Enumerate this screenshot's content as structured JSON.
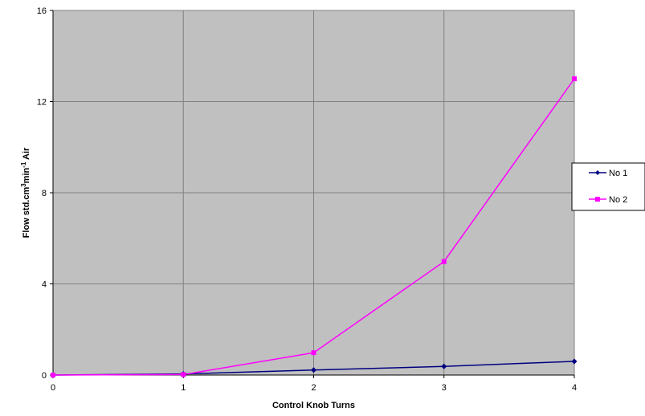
{
  "chart_data": {
    "type": "line",
    "xlabel": "Control Knob Turns",
    "ylabel": {
      "main": "Flow  std.cm",
      "sup1": "3",
      "mid": "min",
      "sup2": "-1",
      "end": "  Air"
    },
    "xlim": [
      0,
      4
    ],
    "ylim": [
      0,
      16
    ],
    "x_ticks": [
      "0",
      "1",
      "2",
      "3",
      "4"
    ],
    "y_ticks": [
      "0",
      "4",
      "8",
      "12",
      "16"
    ],
    "grid": true,
    "plot_background": "#C0C0C0",
    "legend_position": "right",
    "series": [
      {
        "name": "No 1",
        "color": "#000080",
        "marker": "diamond",
        "x": [
          0,
          1,
          2,
          3,
          4
        ],
        "y": [
          0,
          0.05,
          0.22,
          0.38,
          0.6
        ]
      },
      {
        "name": "No 2",
        "color": "#FF00FF",
        "marker": "square",
        "x": [
          0,
          1,
          2,
          3,
          4
        ],
        "y": [
          0,
          0.02,
          0.98,
          4.98,
          13.0
        ]
      }
    ]
  }
}
